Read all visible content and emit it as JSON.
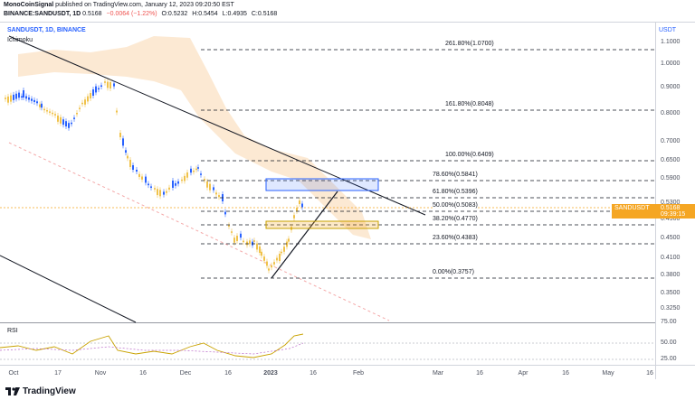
{
  "header": {
    "line1_user": "MonoCoinSignal",
    "line1_rest": "published on TradingView.com, January 12, 2023 09:20:50 EST",
    "pair": "BINANCE:SANDUSDT, 1D",
    "last": "0.5168",
    "change": "−0.0064 (−1.22%)",
    "o": "O:0.5232",
    "h": "H:0.5454",
    "l": "L:0.4935",
    "c": "C:0.5168"
  },
  "chart": {
    "symbol_label": "SANDUSDT, 1D, BINANCE",
    "indicator": "Ichimoku",
    "currency": "USDT",
    "rsi_label": "RSI",
    "price_tag_symbol": "SANDUSDT",
    "price_tag_value": "0.5168",
    "price_tag_timer": "09:39:15",
    "yticks": [
      "1.1000",
      "1.0000",
      "0.9000",
      "0.8000",
      "0.7000",
      "0.6500",
      "0.5900",
      "0.5300",
      "0.4900",
      "0.4500",
      "0.4100",
      "0.3800",
      "0.3500",
      "0.3250"
    ],
    "rsi_ticks": [
      "75.00",
      "50.00",
      "25.00"
    ],
    "xticks": [
      "Oct",
      "17",
      "Nov",
      "16",
      "Dec",
      "16",
      "2023",
      "16",
      "Feb",
      "Mar",
      "16",
      "Apr",
      "16",
      "May",
      "16"
    ],
    "fib_levels": [
      {
        "label": "261.80%(1.0700)"
      },
      {
        "label": "161.80%(0.8048)"
      },
      {
        "label": "100.00%(0.6409)"
      },
      {
        "label": "78.60%(0.5841)"
      },
      {
        "label": "61.80%(0.5396)"
      },
      {
        "label": "50.00%(0.5083)"
      },
      {
        "label": "38.20%(0.4770)"
      },
      {
        "label": "23.60%(0.4383)"
      },
      {
        "label": "0.00%(0.3757)"
      }
    ],
    "colors": {
      "up": "#2962ff",
      "down": "#f0c24a",
      "accent": "#f5a623",
      "cloud": "#fbe3c8"
    }
  },
  "footer": {
    "brand": "TradingView"
  }
}
